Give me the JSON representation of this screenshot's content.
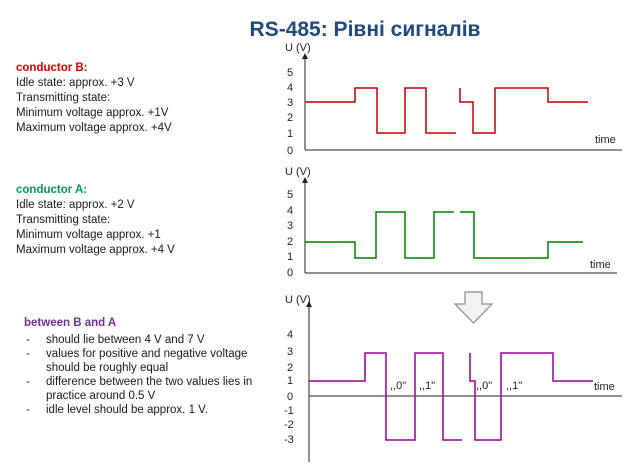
{
  "title": "RS-485: Рівні сигналів",
  "conductor_b": {
    "heading": "conductor B",
    "heading_suffix": ":",
    "lines": [
      "Idle state: approx. +3 V",
      "Transmitting state:",
      " Minimum voltage approx. +1V",
      " Maximum voltage approx. +4V"
    ]
  },
  "conductor_a": {
    "heading": "conductor A:",
    "lines": [
      "Idle state: approx. +2 V",
      "Transmitting state:",
      " Minimum voltage approx. +1",
      " Maximum voltage approx. +4 V"
    ]
  },
  "between": {
    "heading": "between B and A",
    "items": [
      "should lie between 4 V and 7 V",
      "values for positive and negative voltage should be roughly equal",
      "difference between the two values lies in practice around  0.5 V",
      "idle level should be approx. 1 V."
    ]
  },
  "colors": {
    "title": "#1f497d",
    "b": "#c00000",
    "a": "#008000",
    "diff": "#9a0099"
  },
  "chart_data": [
    {
      "type": "line",
      "name": "conductor B",
      "ylabel": "U (V)",
      "xlabel": "time",
      "yticks": [
        "0",
        "1",
        "2",
        "3",
        "4",
        "5"
      ],
      "ylim": [
        0,
        5
      ]
    },
    {
      "type": "line",
      "name": "conductor A",
      "ylabel": "U (V)",
      "xlabel": "time",
      "yticks": [
        "0",
        "1",
        "2",
        "3",
        "4",
        "5"
      ],
      "ylim": [
        0,
        5
      ]
    },
    {
      "type": "line",
      "name": "between B and A",
      "ylabel": "U (V)",
      "xlabel": "time",
      "yticks": [
        "4",
        "3",
        "2",
        "1",
        "0",
        "-1",
        "-2",
        "-3"
      ],
      "ylim": [
        -3.5,
        4.5
      ],
      "bit_labels": [
        ",,0\"",
        ",,1\"",
        ",,0\"",
        ",,1\""
      ]
    }
  ]
}
